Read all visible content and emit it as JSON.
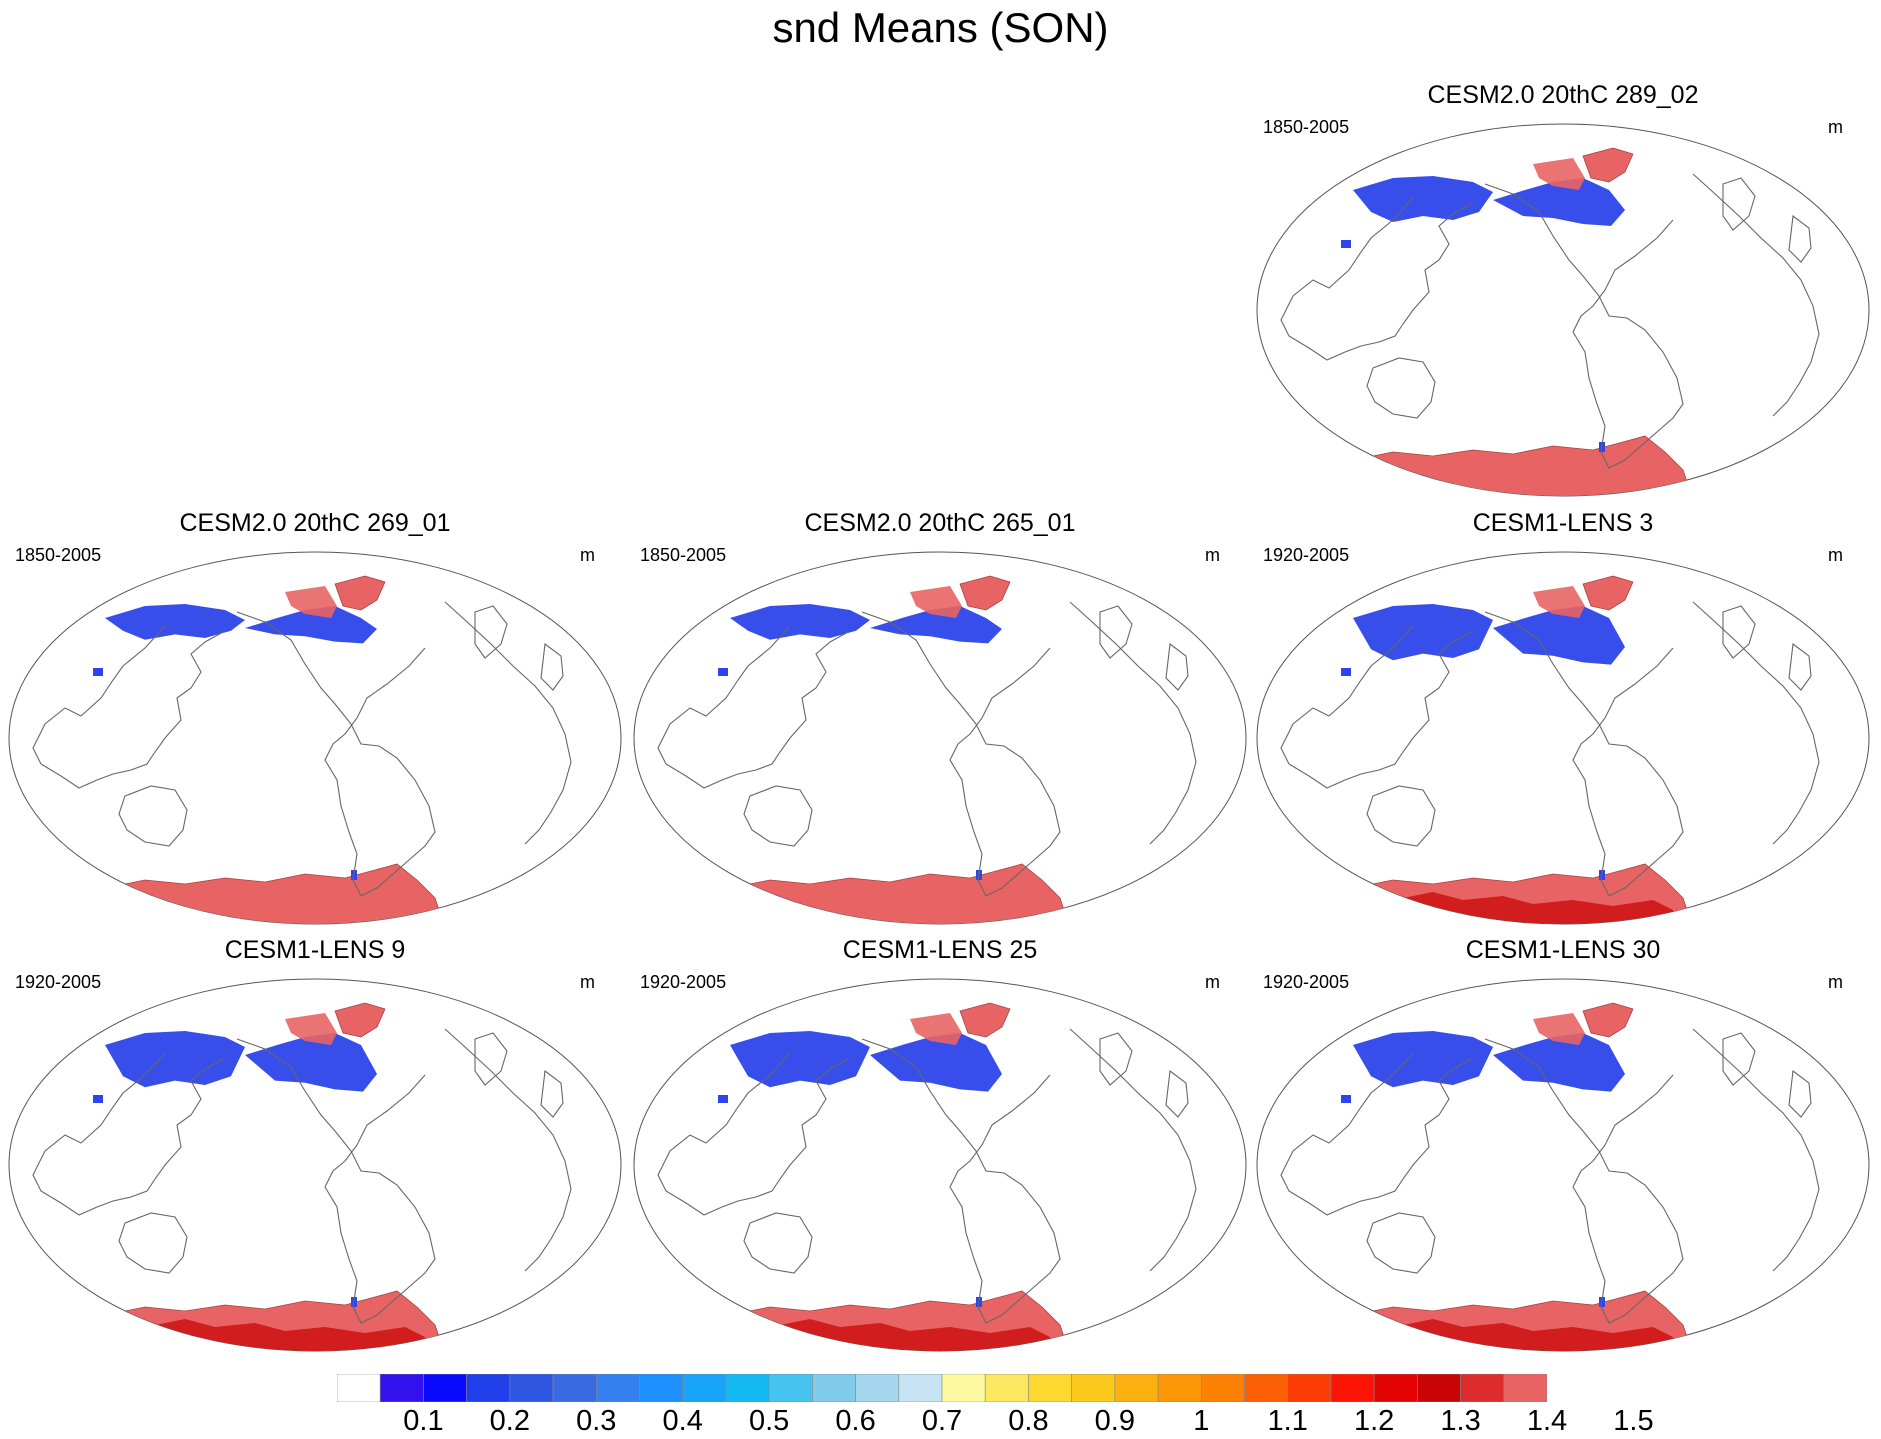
{
  "title": "snd Means (SON)",
  "panels": [
    {
      "id": "p1",
      "title": "CESM2.0 20thC 289_02",
      "years": "1850-2005",
      "units": "m",
      "antarctic_deep": false,
      "nh_extent": 1.0
    },
    {
      "id": "p2",
      "title": "CESM2.0 20thC 269_01",
      "years": "1850-2005",
      "units": "m",
      "antarctic_deep": false,
      "nh_extent": 0.9
    },
    {
      "id": "p3",
      "title": "CESM2.0 20thC 265_01",
      "years": "1850-2005",
      "units": "m",
      "antarctic_deep": false,
      "nh_extent": 0.9
    },
    {
      "id": "p4",
      "title": "CESM1-LENS 3",
      "years": "1920-2005",
      "units": "m",
      "antarctic_deep": true,
      "nh_extent": 1.1
    },
    {
      "id": "p5",
      "title": "CESM1-LENS 9",
      "years": "1920-2005",
      "units": "m",
      "antarctic_deep": true,
      "nh_extent": 1.1
    },
    {
      "id": "p6",
      "title": "CESM1-LENS 25",
      "years": "1920-2005",
      "units": "m",
      "antarctic_deep": true,
      "nh_extent": 1.1
    },
    {
      "id": "p7",
      "title": "CESM1-LENS 30",
      "years": "1920-2005",
      "units": "m",
      "antarctic_deep": true,
      "nh_extent": 1.1
    }
  ],
  "colorbar": {
    "colors": [
      "#ffffff",
      "#3311ee",
      "#0a0aff",
      "#1f3fe8",
      "#2e55e0",
      "#3a6ae2",
      "#3380f0",
      "#1e90ff",
      "#18a4f8",
      "#14b8f2",
      "#46c4f0",
      "#80caea",
      "#a4d6ee",
      "#c6e4f4",
      "#fcf8a0",
      "#fce860",
      "#fcd830",
      "#fcc81c",
      "#fcb010",
      "#fc9808",
      "#fc8004",
      "#fc6004",
      "#fc3c04",
      "#fc1404",
      "#e40404",
      "#c80404",
      "#dc2c2c",
      "#e86464"
    ],
    "labels": [
      "0.1",
      "0.2",
      "0.3",
      "0.4",
      "0.5",
      "0.6",
      "0.7",
      "0.8",
      "0.9",
      "1",
      "1.1",
      "1.2",
      "1.3",
      "1.4",
      "1.5"
    ]
  }
}
